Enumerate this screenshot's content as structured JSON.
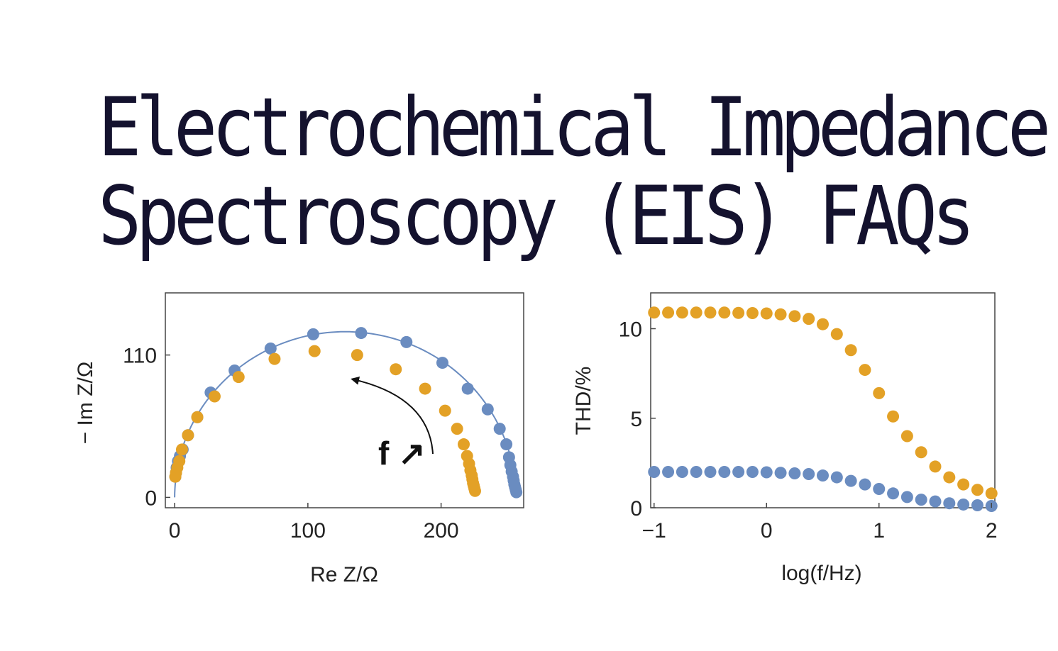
{
  "title": {
    "line1": "Electrochemical Impedance",
    "line2": "Spectroscopy (EIS) FAQs"
  },
  "colors": {
    "blue": "#6a8cc0",
    "orange": "#e3a126",
    "fit_line": "#6a8cc0",
    "text": "#14122e"
  },
  "chart_data": [
    {
      "type": "scatter",
      "title": "",
      "xlabel": "Re Z/Ω",
      "ylabel": "− Im Z/Ω",
      "xlim": [
        -7,
        262
      ],
      "ylim": [
        -8,
        158
      ],
      "xticks": [
        "0",
        "100",
        "200"
      ],
      "yticks": [
        "0",
        "110"
      ],
      "annotation": "f ↗",
      "series": [
        {
          "color": "blue",
          "fit_curve": {
            "type": "semicircle",
            "x_start": 0,
            "x_end": 256
          },
          "points": [
            [
              0.5,
              16
            ],
            [
              1,
              19
            ],
            [
              1.5,
              23
            ],
            [
              2.5,
              28
            ],
            [
              4,
              32
            ],
            [
              6,
              37
            ],
            [
              10,
              48
            ],
            [
              17,
              62
            ],
            [
              27,
              81
            ],
            [
              45,
              98
            ],
            [
              72,
              115
            ],
            [
              104,
              126
            ],
            [
              140,
              127
            ],
            [
              174,
              120
            ],
            [
              201,
              104
            ],
            [
              220,
              84
            ],
            [
              235,
              68
            ],
            [
              244,
              53
            ],
            [
              249,
              41
            ],
            [
              251,
              31
            ],
            [
              252,
              25
            ],
            [
              253,
              20
            ],
            [
              254,
              16
            ],
            [
              254.5,
              13
            ],
            [
              255,
              10
            ],
            [
              255.5,
              8
            ],
            [
              256,
              6
            ],
            [
              256.5,
              4
            ]
          ]
        },
        {
          "color": "orange",
          "fit_curve": null,
          "points": [
            [
              0.5,
              16
            ],
            [
              1,
              19
            ],
            [
              2,
              23
            ],
            [
              3.5,
              28
            ],
            [
              5.5,
              37
            ],
            [
              10,
              48
            ],
            [
              17,
              62
            ],
            [
              30,
              78
            ],
            [
              48,
              93
            ],
            [
              75,
              107
            ],
            [
              105,
              113
            ],
            [
              137,
              110
            ],
            [
              166,
              99
            ],
            [
              188,
              84
            ],
            [
              203,
              67
            ],
            [
              212,
              53
            ],
            [
              217,
              41
            ],
            [
              219.5,
              32
            ],
            [
              221,
              26
            ],
            [
              222,
              21
            ],
            [
              223,
              17
            ],
            [
              223.5,
              14
            ],
            [
              224,
              11
            ],
            [
              224.5,
              9
            ],
            [
              225,
              7
            ],
            [
              225.5,
              5
            ]
          ]
        }
      ]
    },
    {
      "type": "scatter",
      "title": "",
      "xlabel": "log(f/Hz)",
      "ylabel": "THD/%",
      "xlim": [
        -1.03,
        2.03
      ],
      "ylim": [
        0,
        12
      ],
      "xticks": [
        "−1",
        "0",
        "1",
        "2"
      ],
      "yticks": [
        "0",
        "5",
        "10"
      ],
      "series": [
        {
          "color": "orange",
          "points": [
            [
              -1.0,
              10.9
            ],
            [
              -0.875,
              10.9
            ],
            [
              -0.75,
              10.9
            ],
            [
              -0.625,
              10.9
            ],
            [
              -0.5,
              10.9
            ],
            [
              -0.375,
              10.9
            ],
            [
              -0.25,
              10.88
            ],
            [
              -0.125,
              10.87
            ],
            [
              0.0,
              10.85
            ],
            [
              0.125,
              10.8
            ],
            [
              0.25,
              10.7
            ],
            [
              0.375,
              10.55
            ],
            [
              0.5,
              10.25
            ],
            [
              0.625,
              9.7
            ],
            [
              0.75,
              8.8
            ],
            [
              0.875,
              7.7
            ],
            [
              1.0,
              6.4
            ],
            [
              1.125,
              5.1
            ],
            [
              1.25,
              4.0
            ],
            [
              1.375,
              3.1
            ],
            [
              1.5,
              2.3
            ],
            [
              1.625,
              1.7
            ],
            [
              1.75,
              1.3
            ],
            [
              1.875,
              1.0
            ],
            [
              2.0,
              0.8
            ]
          ]
        },
        {
          "color": "blue",
          "points": [
            [
              -1.0,
              2.0
            ],
            [
              -0.875,
              2.0
            ],
            [
              -0.75,
              2.0
            ],
            [
              -0.625,
              2.0
            ],
            [
              -0.5,
              2.0
            ],
            [
              -0.375,
              2.0
            ],
            [
              -0.25,
              2.0
            ],
            [
              -0.125,
              2.0
            ],
            [
              0.0,
              1.98
            ],
            [
              0.125,
              1.95
            ],
            [
              0.25,
              1.92
            ],
            [
              0.375,
              1.88
            ],
            [
              0.5,
              1.8
            ],
            [
              0.625,
              1.7
            ],
            [
              0.75,
              1.5
            ],
            [
              0.875,
              1.3
            ],
            [
              1.0,
              1.05
            ],
            [
              1.125,
              0.8
            ],
            [
              1.25,
              0.6
            ],
            [
              1.375,
              0.45
            ],
            [
              1.5,
              0.35
            ],
            [
              1.625,
              0.25
            ],
            [
              1.75,
              0.18
            ],
            [
              1.875,
              0.14
            ],
            [
              2.0,
              0.1
            ]
          ]
        }
      ]
    }
  ]
}
